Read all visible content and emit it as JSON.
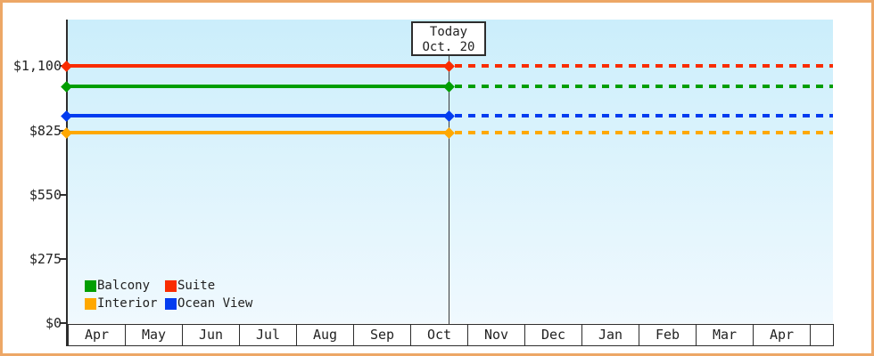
{
  "window": {
    "border_color": "#eda766",
    "background": "#ffffff"
  },
  "chart_data": {
    "type": "line",
    "description": "Cruise cabin price history: flat solid lines from April to today (Oct. 20), dashed projection lines after today",
    "plot_bg_top": "#cbeefb",
    "plot_bg_bottom": "#f0f9fe",
    "y_axis": {
      "min": 0,
      "max": 1300,
      "ticks": [
        {
          "value": 0,
          "label": "$0"
        },
        {
          "value": 275,
          "label": "$275"
        },
        {
          "value": 550,
          "label": "$550"
        },
        {
          "value": 825,
          "label": "$825"
        },
        {
          "value": 1100,
          "label": "$1,100"
        }
      ]
    },
    "x_axis": {
      "months": [
        "Apr",
        "May",
        "Jun",
        "Jul",
        "Aug",
        "Sep",
        "Oct",
        "Nov",
        "Dec",
        "Jan",
        "Feb",
        "Mar",
        "Apr"
      ],
      "trailing_blank_cell": true
    },
    "today": {
      "label_line1": "Today",
      "label_line2": "Oct. 20",
      "month_index": 6,
      "month_fraction": 0.67
    },
    "series": [
      {
        "name": "Suite",
        "color": "#f92c00",
        "value": 1100,
        "style": "solid-then-dashed"
      },
      {
        "name": "Balcony",
        "color": "#019e01",
        "value": 1015,
        "style": "solid-then-dashed"
      },
      {
        "name": "Ocean View",
        "color": "#033cf0",
        "value": 890,
        "style": "solid-then-dashed"
      },
      {
        "name": "Interior",
        "color": "#ffa800",
        "value": 815,
        "style": "solid-then-dashed"
      }
    ],
    "legend": {
      "order": [
        "Balcony",
        "Suite",
        "Interior",
        "Ocean View"
      ],
      "columns": 2,
      "position": "bottom-left-inside-plot"
    }
  }
}
